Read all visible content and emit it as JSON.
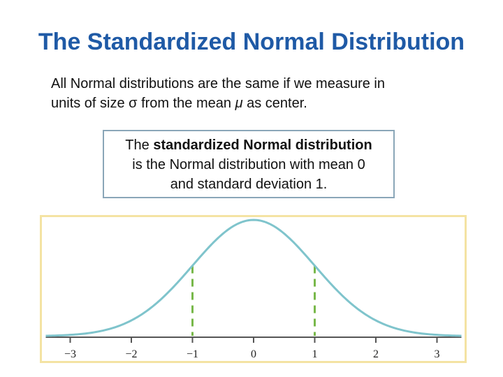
{
  "slide": {
    "title": "The Standardized Normal Distribution",
    "body_line1": "All Normal distributions are the same if we measure in",
    "body_line2_pre": "units of size σ from the mean ",
    "body_line2_mu": "μ",
    "body_line2_post": " as center."
  },
  "definition_box": {
    "line1_pre": "The ",
    "line1_bold": "standardized Normal distribution",
    "line2": "is the Normal distribution with mean 0",
    "line3": "and standard deviation 1."
  },
  "colors": {
    "title": "#1f5aa6",
    "curve": "#7fc4cc",
    "dashed_lines": "#78b84a",
    "axis": "#555555",
    "panel_border": "#f4e3a3",
    "box_border": "#8aa6b8"
  },
  "chart_data": {
    "type": "line",
    "title": "",
    "xlabel": "",
    "ylabel": "",
    "xlim": [
      -3.4,
      3.4
    ],
    "ticks": [
      -3,
      -2,
      -1,
      0,
      1,
      2,
      3
    ],
    "tick_labels": [
      "−3",
      "−2",
      "−1",
      "0",
      "1",
      "2",
      "3"
    ],
    "series": [
      {
        "function": "standard normal density",
        "mean": 0,
        "sd": 1
      }
    ],
    "dashed_markers_x": [
      -1,
      1
    ],
    "grid": false
  }
}
